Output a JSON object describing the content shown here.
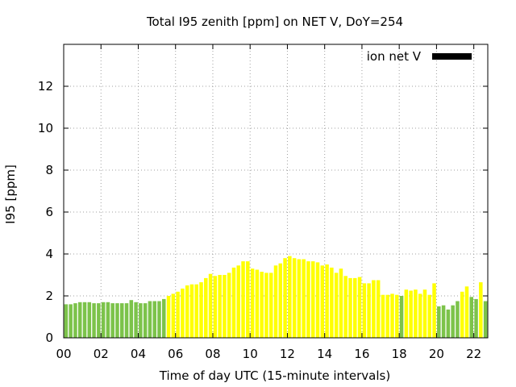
{
  "chart_data": {
    "type": "bar",
    "title": "Total I95 zenith [ppm] on NET V, DoY=254",
    "xlabel": "Time of day UTC (15-minute intervals)",
    "ylabel": "I95 [ppm]",
    "xlim": [
      0,
      22.75
    ],
    "ylim": [
      0,
      14
    ],
    "xticks": [
      "00",
      "02",
      "04",
      "06",
      "08",
      "10",
      "12",
      "14",
      "16",
      "18",
      "20",
      "22"
    ],
    "yticks": [
      "0",
      "2",
      "4",
      "6",
      "8",
      "10",
      "12"
    ],
    "grid": true,
    "legend": {
      "position": "top-right",
      "entries": [
        {
          "label": "ion net V",
          "color": "#000000"
        }
      ]
    },
    "colors": {
      "low": "#7cc34a",
      "high": "#ffff00"
    },
    "interval_hours": 0.25,
    "values": [
      1.6,
      1.6,
      1.65,
      1.7,
      1.7,
      1.7,
      1.65,
      1.65,
      1.7,
      1.7,
      1.65,
      1.65,
      1.65,
      1.65,
      1.8,
      1.7,
      1.65,
      1.65,
      1.75,
      1.75,
      1.75,
      1.85,
      2.0,
      2.1,
      2.2,
      2.35,
      2.5,
      2.55,
      2.55,
      2.65,
      2.85,
      3.05,
      2.95,
      3.0,
      3.0,
      3.1,
      3.35,
      3.45,
      3.65,
      3.65,
      3.3,
      3.25,
      3.15,
      3.1,
      3.1,
      3.45,
      3.55,
      3.8,
      3.9,
      3.8,
      3.75,
      3.75,
      3.65,
      3.65,
      3.6,
      3.45,
      3.5,
      3.35,
      3.1,
      3.3,
      2.95,
      2.85,
      2.85,
      2.9,
      2.6,
      2.6,
      2.75,
      2.75,
      2.05,
      2.05,
      2.1,
      2.05,
      2.0,
      2.3,
      2.25,
      2.3,
      2.1,
      2.3,
      2.05,
      2.6,
      1.5,
      1.55,
      1.35,
      1.55,
      1.75,
      2.2,
      2.45,
      1.95,
      1.85,
      2.65,
      1.75
    ],
    "band": [
      "low",
      "low",
      "low",
      "low",
      "low",
      "low",
      "low",
      "low",
      "low",
      "low",
      "low",
      "low",
      "low",
      "low",
      "low",
      "low",
      "low",
      "low",
      "low",
      "low",
      "low",
      "low",
      "high",
      "high",
      "high",
      "high",
      "high",
      "high",
      "high",
      "high",
      "high",
      "high",
      "high",
      "high",
      "high",
      "high",
      "high",
      "high",
      "high",
      "high",
      "high",
      "high",
      "high",
      "high",
      "high",
      "high",
      "high",
      "high",
      "high",
      "high",
      "high",
      "high",
      "high",
      "high",
      "high",
      "high",
      "high",
      "high",
      "high",
      "high",
      "high",
      "high",
      "high",
      "high",
      "high",
      "high",
      "high",
      "high",
      "high",
      "high",
      "high",
      "high",
      "low",
      "high",
      "high",
      "high",
      "high",
      "high",
      "high",
      "high",
      "low",
      "low",
      "low",
      "low",
      "low",
      "high",
      "high",
      "low",
      "low",
      "high",
      "low"
    ]
  }
}
